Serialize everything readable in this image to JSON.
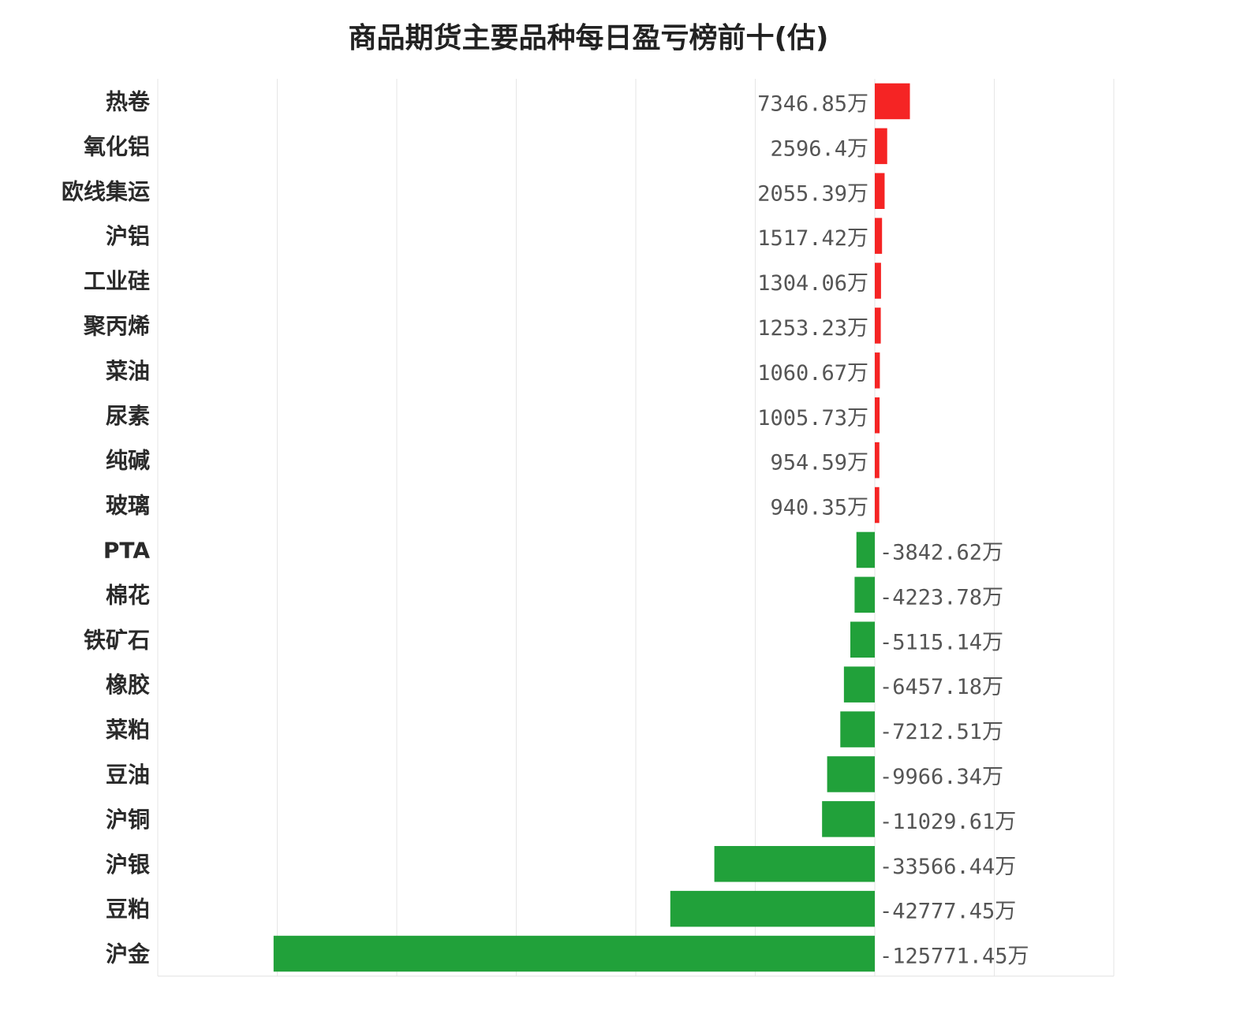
{
  "chart_data": {
    "type": "bar",
    "orientation": "horizontal",
    "title": "商品期货主要品种每日盈亏榜前十(估)",
    "xlabel": "",
    "ylabel": "",
    "unit": "万",
    "xlim": [
      -150000,
      50000
    ],
    "grid": true,
    "legend": "none",
    "colors": {
      "positive": "#f52424",
      "negative": "#21a13a"
    },
    "categories": [
      "热卷",
      "氧化铝",
      "欧线集运",
      "沪铝",
      "工业硅",
      "聚丙烯",
      "菜油",
      "尿素",
      "纯碱",
      "玻璃",
      "PTA",
      "棉花",
      "铁矿石",
      "橡胶",
      "菜粕",
      "豆油",
      "沪铜",
      "沪银",
      "豆粕",
      "沪金"
    ],
    "values": [
      7346.85,
      2596.4,
      2055.39,
      1517.42,
      1304.06,
      1253.23,
      1060.67,
      1005.73,
      954.59,
      940.35,
      -3842.62,
      -4223.78,
      -5115.14,
      -6457.18,
      -7212.51,
      -9966.34,
      -11029.61,
      -33566.44,
      -42777.45,
      -125771.45
    ],
    "value_labels": [
      "7346.85万",
      "2596.4万",
      "2055.39万",
      "1517.42万",
      "1304.06万",
      "1253.23万",
      "1060.67万",
      "1005.73万",
      "954.59万",
      "940.35万",
      "-3842.62万",
      "-4223.78万",
      "-5115.14万",
      "-6457.18万",
      "-7212.51万",
      "-9966.34万",
      "-11029.61万",
      "-33566.44万",
      "-42777.45万",
      "-125771.45万"
    ]
  }
}
